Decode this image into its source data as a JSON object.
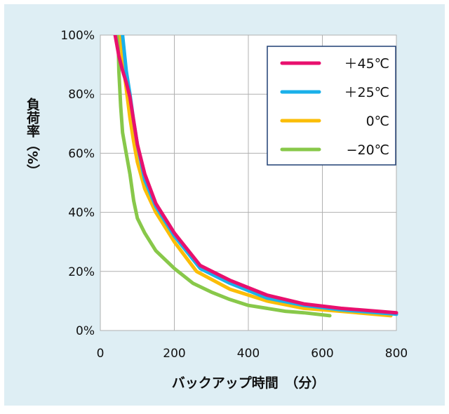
{
  "chart_data": {
    "type": "line",
    "title": "",
    "xlabel": "バックアップ時間　（分）",
    "ylabel": "負荷率（%）",
    "xlim": [
      0,
      800
    ],
    "ylim": [
      0,
      100
    ],
    "x_ticks": [
      "0",
      "200",
      "400",
      "600",
      "800"
    ],
    "y_ticks": [
      "0%",
      "20%",
      "40%",
      "60%",
      "80%",
      "100%"
    ],
    "grid": true,
    "legend_position": "top-right",
    "series": [
      {
        "name": "＋45℃",
        "color": "#e8106e",
        "x": [
          40,
          50,
          60,
          70,
          80,
          90,
          100,
          120,
          150,
          200,
          270,
          350,
          450,
          550,
          650,
          800
        ],
        "y": [
          100,
          93,
          88,
          84,
          79,
          71,
          63,
          53,
          43,
          33,
          22,
          17,
          12,
          9,
          7.5,
          6
        ]
      },
      {
        "name": "＋25℃",
        "color": "#1ab0ea",
        "x": [
          60,
          65,
          70,
          80,
          90,
          100,
          120,
          150,
          200,
          270,
          350,
          450,
          550,
          650,
          800
        ],
        "y": [
          100,
          94,
          88,
          80,
          71,
          63,
          51,
          42,
          32,
          21,
          16,
          11,
          8.5,
          7,
          5.5
        ]
      },
      {
        "name": "0℃",
        "color": "#fbbd08",
        "x": [
          55,
          60,
          70,
          80,
          90,
          100,
          120,
          150,
          200,
          260,
          350,
          450,
          550,
          650,
          785
        ],
        "y": [
          100,
          92,
          82,
          72,
          64,
          57,
          48,
          40,
          30,
          20,
          14,
          10,
          7.5,
          6.5,
          5
        ]
      },
      {
        "name": "−20℃",
        "color": "#88c84a",
        "x": [
          48,
          50,
          55,
          60,
          70,
          80,
          90,
          100,
          120,
          150,
          200,
          250,
          300,
          350,
          400,
          450,
          500,
          550,
          620
        ],
        "y": [
          100,
          88,
          76,
          67,
          60,
          53,
          44,
          38,
          33,
          27,
          21,
          16,
          13,
          10.5,
          8.5,
          7.5,
          6.5,
          6,
          5
        ]
      }
    ]
  }
}
